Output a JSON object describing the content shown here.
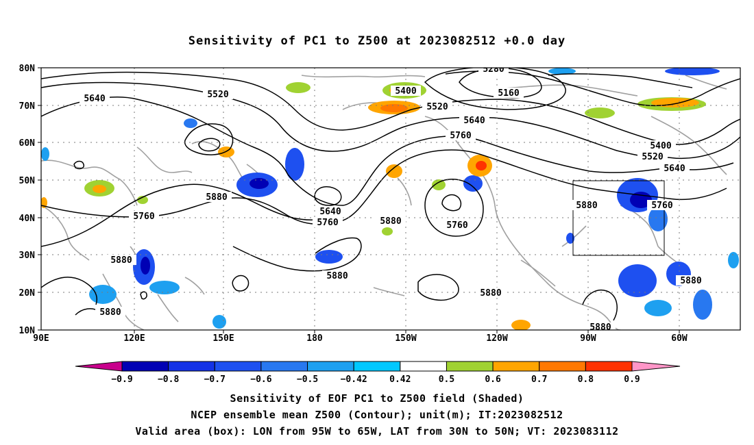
{
  "title": "Sensitivity of PC1 to Z500 at 2023082512 +0.0 day",
  "lat_labels": [
    "80N",
    "70N",
    "60N",
    "50N",
    "40N",
    "30N",
    "20N",
    "10N"
  ],
  "lon_labels": [
    "90E",
    "120E",
    "150E",
    "180",
    "150W",
    "120W",
    "90W",
    "60W"
  ],
  "contour_labels": [
    {
      "text": "5640",
      "k": "c1"
    },
    {
      "text": "5520",
      "k": "c2"
    },
    {
      "text": "5400",
      "k": "c3"
    },
    {
      "text": "5280",
      "k": "c4"
    },
    {
      "text": "5160",
      "k": "c5"
    },
    {
      "text": "5520",
      "k": "c6"
    },
    {
      "text": "5640",
      "k": "c7"
    },
    {
      "text": "5760",
      "k": "c8"
    },
    {
      "text": "5400",
      "k": "c9"
    },
    {
      "text": "5520",
      "k": "c10"
    },
    {
      "text": "5640",
      "k": "c11"
    },
    {
      "text": "5880",
      "k": "c12"
    },
    {
      "text": "5760",
      "k": "c13"
    },
    {
      "text": "5640",
      "k": "c14"
    },
    {
      "text": "5760",
      "k": "c15"
    },
    {
      "text": "5880",
      "k": "c16"
    },
    {
      "text": "5760",
      "k": "c17"
    },
    {
      "text": "5880",
      "k": "c18"
    },
    {
      "text": "5760",
      "k": "c19"
    },
    {
      "text": "5880",
      "k": "c20"
    },
    {
      "text": "5880",
      "k": "c21"
    },
    {
      "text": "5880",
      "k": "c22"
    },
    {
      "text": "5880",
      "k": "c23"
    },
    {
      "text": "5880",
      "k": "c24"
    },
    {
      "text": "5880",
      "k": "c25"
    }
  ],
  "colorbar": {
    "labels": [
      "-0.9",
      "-0.8",
      "-0.7",
      "-0.6",
      "-0.5",
      "-0.42",
      "0.42",
      "0.5",
      "0.6",
      "0.7",
      "0.8",
      "0.9"
    ],
    "colors": [
      "#0000b4",
      "#1432e6",
      "#1e50f0",
      "#2878f0",
      "#1ea0f0",
      "#00c8ff",
      "#ffffff",
      "#a0d232",
      "#ffa500",
      "#ff7800",
      "#ff3200",
      "#ff0000"
    ],
    "under_color": "#c8008c",
    "over_color": "#ff96c8"
  },
  "footer": {
    "line1": "Sensitivity of EOF PC1 to Z500 field (Shaded)",
    "line2": "NCEP ensemble mean Z500 (Contour); unit(m); IT:2023082512",
    "line3": "Valid area (box): LON from 95W to 65W, LAT from 30N to 50N; VT: 2023083112"
  }
}
